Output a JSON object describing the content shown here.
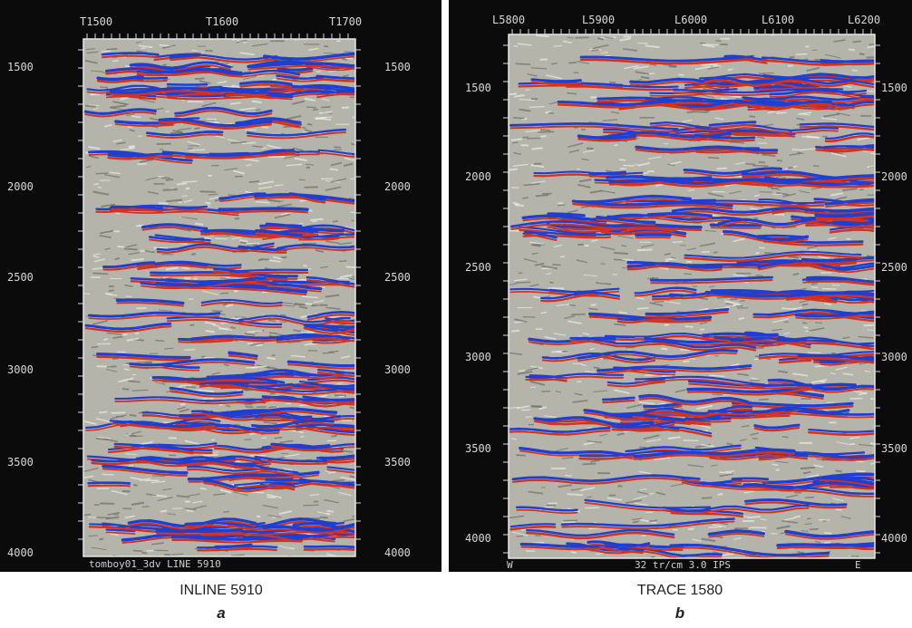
{
  "panels": [
    {
      "id": "a",
      "top_ticks": [
        "T1500",
        "T1600",
        "T1700"
      ],
      "depth_ticks": [
        "1500",
        "2000",
        "2500",
        "3000",
        "3500",
        "4000"
      ],
      "footer": "tomboy01_3dv LINE 5910",
      "caption_title": "INLINE 5910",
      "caption_letter": "a"
    },
    {
      "id": "b",
      "top_ticks": [
        "L5800",
        "L5900",
        "L6000",
        "L6100",
        "L6200"
      ],
      "depth_ticks": [
        "1500",
        "2000",
        "2500",
        "3000",
        "3500",
        "4000"
      ],
      "footer_left": "W",
      "footer": "32 tr/cm 3.0 IPS",
      "footer_right": "E",
      "caption_title": "TRACE 1580",
      "caption_letter": "b"
    }
  ],
  "colors": {
    "background": "#0b0b0b",
    "section": "#b4b4aa",
    "peak": "#1f3fd0",
    "trough": "#d23220",
    "label": "#d8d8d8"
  }
}
